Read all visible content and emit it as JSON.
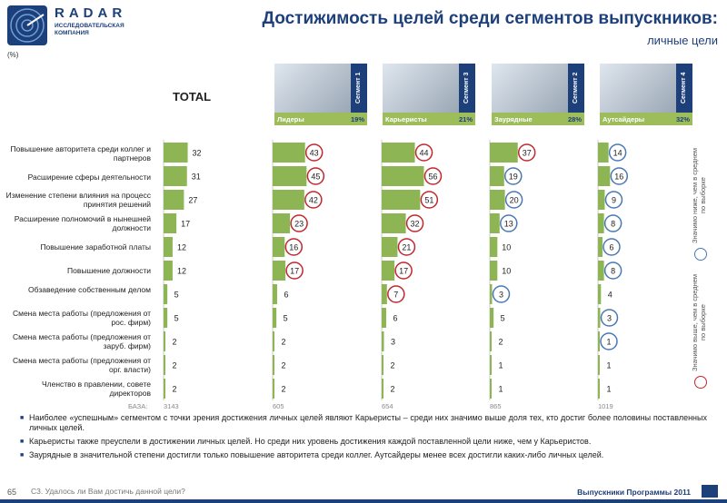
{
  "header": {
    "logo_name": "RADAR",
    "logo_sub": "ИССЛЕДОВАТЕЛЬСКАЯ КОМПАНИЯ",
    "title": "Достижимость целей среди сегментов выпускников:",
    "subtitle": "личные цели",
    "unit": "(%)"
  },
  "total_label": "TOTAL",
  "segments": [
    {
      "tag": "Сегмент 1",
      "name": "Лидеры",
      "share": "19%"
    },
    {
      "tag": "Сегмент 3",
      "name": "Карьеристы",
      "share": "21%"
    },
    {
      "tag": "Сегмент 2",
      "name": "Заурядные",
      "share": "28%"
    },
    {
      "tag": "Сегмент 4",
      "name": "Аутсайдеры",
      "share": "32%"
    }
  ],
  "legend": {
    "below": "Значимо ниже, чем в среднем по выборке",
    "above": "Значимо выше, чем в среднем по выборке",
    "below_color": "#4a78b5",
    "above_color": "#c0282e"
  },
  "chart_data": {
    "type": "bar",
    "orientation": "horizontal",
    "bar_color": "#8db554",
    "categories": [
      "Повышение авторитета среди коллег и партнеров",
      "Расширение сферы деятельности",
      "Изменение степени влияния на процесс принятия решений",
      "Расширение полномочий в нынешней должности",
      "Повышение заработной платы",
      "Повышение должности",
      "Обзаведение собственным делом",
      "Смена места работы (предложения от рос. фирм)",
      "Смена места работы (предложения от заруб. фирм)",
      "Смена места работы (предложения от орг. власти)",
      "Членство в правлении, совете директоров"
    ],
    "series": [
      {
        "name": "TOTAL",
        "values": [
          32,
          31,
          27,
          17,
          12,
          12,
          5,
          5,
          2,
          2,
          2
        ],
        "marks": [
          "",
          "",
          "",
          "",
          "",
          "",
          "",
          "",
          "",
          "",
          ""
        ]
      },
      {
        "name": "Лидеры",
        "values": [
          43,
          45,
          42,
          23,
          16,
          17,
          6,
          5,
          2,
          2,
          2
        ],
        "marks": [
          "above",
          "above",
          "above",
          "above",
          "above",
          "above",
          "",
          "",
          "",
          "",
          ""
        ]
      },
      {
        "name": "Карьеристы",
        "values": [
          44,
          56,
          51,
          32,
          21,
          17,
          7,
          6,
          3,
          2,
          2
        ],
        "marks": [
          "above",
          "above",
          "above",
          "above",
          "above",
          "above",
          "above",
          "",
          "",
          "",
          ""
        ]
      },
      {
        "name": "Заурядные",
        "values": [
          37,
          19,
          20,
          13,
          10,
          10,
          3,
          5,
          2,
          1,
          1
        ],
        "marks": [
          "above",
          "below",
          "below",
          "below",
          "",
          "",
          "below",
          "",
          "",
          "",
          ""
        ]
      },
      {
        "name": "Аутсайдеры",
        "values": [
          14,
          16,
          9,
          8,
          6,
          8,
          4,
          3,
          1,
          1,
          1
        ],
        "marks": [
          "below",
          "below",
          "below",
          "below",
          "below",
          "below",
          "",
          "below",
          "below",
          "",
          ""
        ]
      }
    ],
    "base_label": "БАЗА:",
    "bases": [
      "3143",
      "605",
      "654",
      "865",
      "1019"
    ]
  },
  "bullets": [
    "Наиболее «успешным» сегментом с точки зрения достижения личных целей являют Карьеристы – среди них значимо выше доля тех, кто достиг более половины поставленных личных целей.",
    "Карьеристы также преуспели в достижении личных целей. Но среди них уровень достижения каждой поставленной цели ниже, чем у Карьеристов.",
    "Заурядные в значительной степени достигли только повышение авторитета среди коллег. Аутсайдеры менее всех достигли каких-либо личных целей."
  ],
  "footer": {
    "page": "65",
    "question": "C3. Удалось ли Вам достичь данной цели?",
    "program": "Выпускники Программы 2011"
  }
}
